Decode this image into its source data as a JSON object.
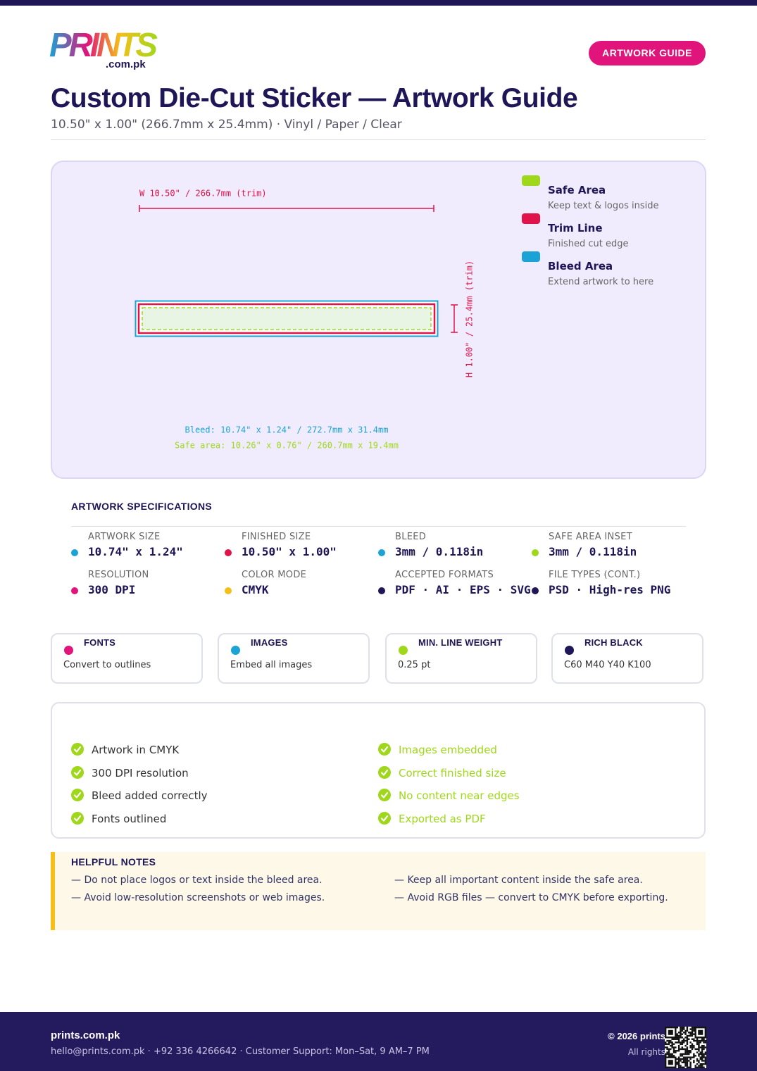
{
  "logo": {
    "brand": "PRINTS",
    "domain": ".com.pk"
  },
  "badge": "ARTWORK GUIDE",
  "header": {
    "title": "Custom Die-Cut Sticker — Artwork Guide",
    "subtitle": "10.50\" x 1.00\" (266.7mm x 25.4mm) · Vinyl / Paper / Clear"
  },
  "diagram": {
    "width_label": "W 10.50\" / 266.7mm (trim)",
    "height_label": "H 1.00\" / 25.4mm (trim)",
    "bleed_note": "Bleed: 10.74\" x 1.24\" / 272.7mm x 31.4mm",
    "safe_note": "Safe area: 10.26\" x 0.76\" / 260.7mm x 19.4mm",
    "legend": [
      {
        "title": "Safe Area",
        "desc": "Keep text & logos inside",
        "color": "#9fd81a"
      },
      {
        "title": "Trim Line",
        "desc": "Finished cut edge",
        "color": "#e0144a"
      },
      {
        "title": "Bleed Area",
        "desc": "Extend artwork to here",
        "color": "#1ba3d6"
      }
    ]
  },
  "specs": {
    "title": "ARTWORK SPECIFICATIONS",
    "items": [
      {
        "label": "ARTWORK SIZE",
        "value": "10.74\" x 1.24\"",
        "color": "#1ba3d6"
      },
      {
        "label": "FINISHED SIZE",
        "value": "10.50\" x 1.00\"",
        "color": "#e0144a"
      },
      {
        "label": "BLEED",
        "value": "3mm / 0.118in",
        "color": "#1ba3d6"
      },
      {
        "label": "SAFE AREA INSET",
        "value": "3mm / 0.118in",
        "color": "#9fd81a"
      },
      {
        "label": "RESOLUTION",
        "value": "300 DPI",
        "color": "#e0147a"
      },
      {
        "label": "COLOR MODE",
        "value": "CMYK",
        "color": "#f5bf1a"
      },
      {
        "label": "ACCEPTED FORMATS",
        "value": "PDF · AI · EPS · SVG",
        "color": "#1e1656"
      },
      {
        "label": "FILE TYPES (CONT.)",
        "value": "PSD · High-res PNG",
        "color": "#1e1656"
      }
    ]
  },
  "cards": [
    {
      "title": "FONTS",
      "text": "Convert to outlines",
      "color": "#e0147a"
    },
    {
      "title": "IMAGES",
      "text": "Embed all images",
      "color": "#1ba3d6"
    },
    {
      "title": "MIN. LINE WEIGHT",
      "text": "0.25 pt",
      "color": "#9fd81a"
    },
    {
      "title": "RICH BLACK",
      "text": "C60 M40 Y40 K100",
      "color": "#1e1656"
    }
  ],
  "checklist": {
    "left": [
      "Artwork in CMYK",
      "300 DPI resolution",
      "Bleed added correctly",
      "Fonts outlined"
    ],
    "right": [
      "Images embedded",
      "Correct finished size",
      "No content near edges",
      "Exported as PDF"
    ]
  },
  "notes": {
    "title": "HELPFUL NOTES",
    "items": [
      "— Do not place logos or text inside the bleed area.",
      "— Keep all important content inside the safe area.",
      "— Avoid low-resolution screenshots or web images.",
      "— Avoid RGB files — convert to CMYK before exporting."
    ]
  },
  "footer": {
    "name": "prints.com.pk",
    "contact": "hello@prints.com.pk · +92 336 4266642 · Customer Support: Mon–Sat, 9 AM–7 PM",
    "copyright": "© 2026 prints",
    "rights": "All rights"
  }
}
